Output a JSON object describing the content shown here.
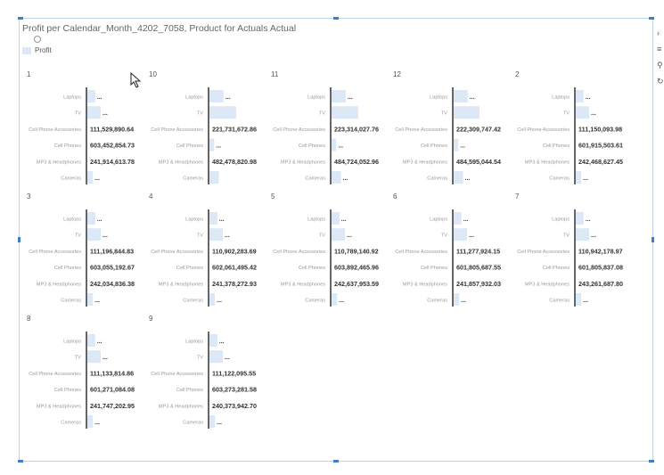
{
  "title": "Profit per Calendar_Month_4202_7058, Product for Actuals Actual",
  "legend": {
    "label": "Profit"
  },
  "colors": {
    "bar": "#dce8f6",
    "axis": "#333333",
    "value_text": "#333333",
    "category_text": "#999999",
    "panel_label": "#555555",
    "selection": "#3f7fc7"
  },
  "toolbar_icons": [
    "chevron-right-icon",
    "table-icon",
    "filter-icon",
    "refresh-icon"
  ],
  "chart_data": {
    "type": "bar",
    "orientation": "horizontal",
    "legend": [
      "Profit"
    ],
    "categories": [
      "Laptops",
      "TV",
      "Cell Phone Accessories",
      "Cell Phones",
      "MP3 & Headphones",
      "Cameras"
    ],
    "panels": [
      {
        "label": "1",
        "values": [
          null,
          null,
          111529890.64,
          603452854.73,
          241914613.78,
          null
        ],
        "value_labels": [
          "...",
          "...",
          "111,529,890.64",
          "603,452,854.73",
          "241,914,613.78",
          "..."
        ],
        "bar_fraction": [
          0.1,
          0.17,
          0,
          0,
          0,
          0.07
        ]
      },
      {
        "label": "10",
        "values": [
          null,
          null,
          221731672.86,
          null,
          482478820.98,
          null
        ],
        "value_labels": [
          "...",
          "",
          "221,731,672.86",
          "...",
          "482,478,820.98",
          ""
        ],
        "bar_fraction": [
          0.18,
          0.34,
          0,
          0.06,
          0,
          0.12
        ]
      },
      {
        "label": "11",
        "values": [
          null,
          null,
          223314027.76,
          null,
          484724052.96,
          null
        ],
        "value_labels": [
          "...",
          "",
          "223,314,027.76",
          "...",
          "484,724,052.96",
          "..."
        ],
        "bar_fraction": [
          0.18,
          0.34,
          0,
          0.06,
          0,
          0.12
        ]
      },
      {
        "label": "12",
        "values": [
          null,
          null,
          222309747.42,
          null,
          484595044.54,
          null
        ],
        "value_labels": [
          "...",
          "",
          "222,309,747.42",
          "...",
          "484,595,044.54",
          "..."
        ],
        "bar_fraction": [
          0.18,
          0.33,
          0,
          0.06,
          0,
          0.12
        ]
      },
      {
        "label": "2",
        "values": [
          null,
          null,
          111150093.98,
          601915503.61,
          242468627.45,
          null
        ],
        "value_labels": [
          "...",
          "...",
          "111,150,093.98",
          "601,915,503.61",
          "242,468,627.45",
          "..."
        ],
        "bar_fraction": [
          0.1,
          0.17,
          0,
          0,
          0,
          0.07
        ]
      },
      {
        "label": "3",
        "values": [
          null,
          null,
          111196844.83,
          603055192.67,
          242034836.38,
          null
        ],
        "value_labels": [
          "...",
          "...",
          "111,196,844.83",
          "603,055,192.67",
          "242,034,836.38",
          "..."
        ],
        "bar_fraction": [
          0.1,
          0.17,
          0,
          0,
          0,
          0.07
        ]
      },
      {
        "label": "4",
        "values": [
          null,
          null,
          110902283.69,
          602061495.42,
          241378272.93,
          null
        ],
        "value_labels": [
          "...",
          "...",
          "110,902,283.69",
          "602,061,495.42",
          "241,378,272.93",
          "..."
        ],
        "bar_fraction": [
          0.1,
          0.17,
          0,
          0,
          0,
          0.07
        ]
      },
      {
        "label": "5",
        "values": [
          null,
          null,
          110789140.92,
          603892465.96,
          242637953.59,
          null
        ],
        "value_labels": [
          "...",
          "...",
          "110,789,140.92",
          "603,892,465.96",
          "242,637,953.59",
          "..."
        ],
        "bar_fraction": [
          0.1,
          0.17,
          0,
          0,
          0,
          0.07
        ]
      },
      {
        "label": "6",
        "values": [
          null,
          null,
          111277924.15,
          601805687.55,
          241857932.03,
          null
        ],
        "value_labels": [
          "...",
          "...",
          "111,277,924.15",
          "601,805,687.55",
          "241,857,932.03",
          "..."
        ],
        "bar_fraction": [
          0.1,
          0.17,
          0,
          0,
          0,
          0.07
        ]
      },
      {
        "label": "7",
        "values": [
          null,
          null,
          110942178.97,
          601805837.08,
          243261687.8,
          null
        ],
        "value_labels": [
          "...",
          "...",
          "110,942,178.97",
          "601,805,837.08",
          "243,261,687.80",
          "..."
        ],
        "bar_fraction": [
          0.1,
          0.17,
          0,
          0,
          0,
          0.07
        ]
      },
      {
        "label": "8",
        "values": [
          null,
          null,
          111133814.86,
          601271084.08,
          241747202.95,
          null
        ],
        "value_labels": [
          "...",
          "...",
          "111,133,814.86",
          "601,271,084.08",
          "241,747,202.95",
          "..."
        ],
        "bar_fraction": [
          0.1,
          0.17,
          0,
          0,
          0,
          0.07
        ]
      },
      {
        "label": "9",
        "values": [
          null,
          null,
          111122095.55,
          603273281.58,
          240373942.7,
          null
        ],
        "value_labels": [
          "...",
          "...",
          "111,122,095.55",
          "603,273,281.58",
          "240,373,942.70",
          "..."
        ],
        "bar_fraction": [
          0.1,
          0.17,
          0,
          0,
          0,
          0.07
        ]
      }
    ]
  }
}
